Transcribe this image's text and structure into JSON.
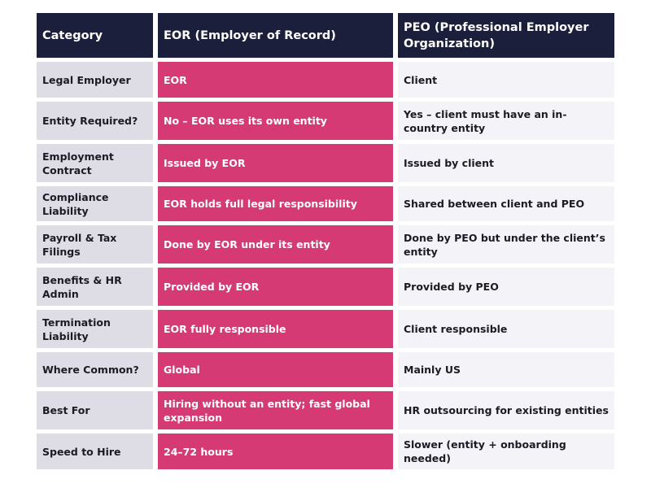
{
  "colors": {
    "header": "#1b1f3b",
    "category": "#dedde6",
    "eor": "#d63a75",
    "peo": "#f3f3f8"
  },
  "headers": [
    "Category",
    "EOR (Employer of Record)",
    "PEO (Professional Employer Organization)"
  ],
  "rows": [
    [
      "Legal Employer",
      "EOR",
      "Client"
    ],
    [
      "Entity Required?",
      "No – EOR uses its own entity",
      "Yes – client must have an in-country entity"
    ],
    [
      "Employment Contract",
      "Issued by EOR",
      "Issued by client"
    ],
    [
      "Compliance Liability",
      "EOR holds full legal responsibility",
      "Shared between client and PEO"
    ],
    [
      "Payroll & Tax Filings",
      "Done by EOR under its entity",
      "Done by PEO but under the client’s entity"
    ],
    [
      "Benefits & HR Admin",
      "Provided by EOR",
      "Provided by PEO"
    ],
    [
      "Termination Liability",
      "EOR fully responsible",
      "Client responsible"
    ],
    [
      "Where Common?",
      "Global",
      "Mainly US"
    ],
    [
      "Best For",
      "Hiring without an entity; fast global expansion",
      "HR outsourcing for existing entities"
    ],
    [
      "Speed to Hire",
      "24–72 hours",
      "Slower (entity + onboarding needed)"
    ]
  ]
}
